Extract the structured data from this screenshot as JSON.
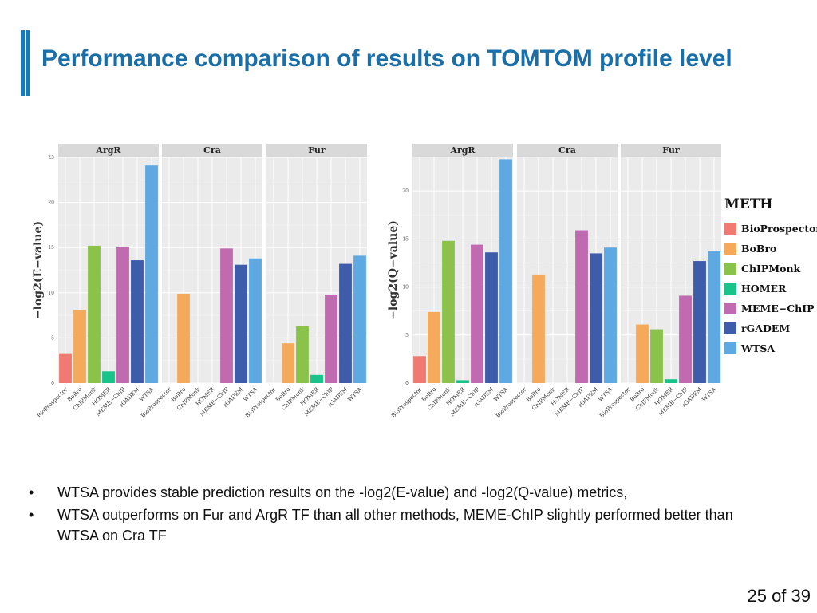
{
  "slide": {
    "title": "Performance comparison of results on TOMTOM profile level",
    "bullets": [
      "WTSA provides stable prediction results on the -log2(E-value) and -log2(Q-value) metrics,",
      "WTSA outperforms on Fur and ArgR TF than all other methods, MEME-ChIP slightly performed better than WTSA on Cra TF"
    ],
    "bullet_symbol": "•",
    "page_number": "25 of 39"
  },
  "legend": {
    "title": "METH",
    "items": [
      {
        "label": "BioProspector",
        "color": "#F07A72"
      },
      {
        "label": "BoBro",
        "color": "#F4A95B"
      },
      {
        "label": "ChIPMonk",
        "color": "#8BC34A"
      },
      {
        "label": "HOMER",
        "color": "#18C48A"
      },
      {
        "label": "MEME−ChIP",
        "color": "#C06AB0"
      },
      {
        "label": "rGADEM",
        "color": "#3D5CA9"
      },
      {
        "label": "WTSA",
        "color": "#5EA9E2"
      }
    ]
  },
  "chart_data": [
    {
      "type": "bar",
      "ylabel": "−log2(E−value)",
      "ylim": [
        0,
        25
      ],
      "yticks": [
        "0",
        "5",
        "10",
        "15",
        "20",
        "25"
      ],
      "categories": [
        "BioProspector",
        "BoBro",
        "ChIPMonk",
        "HOMER",
        "MEME−ChIP",
        "rGADEM",
        "WTSA"
      ],
      "panels": [
        {
          "name": "ArgR",
          "values": [
            3.3,
            8.1,
            15.2,
            1.3,
            15.1,
            13.6,
            24.1
          ]
        },
        {
          "name": "Cra",
          "values": [
            0,
            9.9,
            0,
            0,
            14.9,
            13.1,
            13.8
          ]
        },
        {
          "name": "Fur",
          "values": [
            0,
            4.4,
            6.3,
            0.9,
            9.8,
            13.2,
            14.1
          ]
        }
      ]
    },
    {
      "type": "bar",
      "ylabel": "−log2(Q−value)",
      "ylim": [
        0,
        23.5
      ],
      "yticks": [
        "0",
        "5",
        "10",
        "15",
        "20"
      ],
      "categories": [
        "BioProspector",
        "BoBro",
        "ChIPMonk",
        "HOMER",
        "MEME−ChIP",
        "rGADEM",
        "WTSA"
      ],
      "panels": [
        {
          "name": "ArgR",
          "values": [
            2.8,
            7.4,
            14.8,
            0.3,
            14.4,
            13.6,
            23.3
          ]
        },
        {
          "name": "Cra",
          "values": [
            0,
            11.3,
            0,
            0,
            15.9,
            13.5,
            14.1
          ]
        },
        {
          "name": "Fur",
          "values": [
            0,
            6.1,
            5.6,
            0.4,
            9.1,
            12.7,
            13.7
          ]
        }
      ]
    }
  ]
}
